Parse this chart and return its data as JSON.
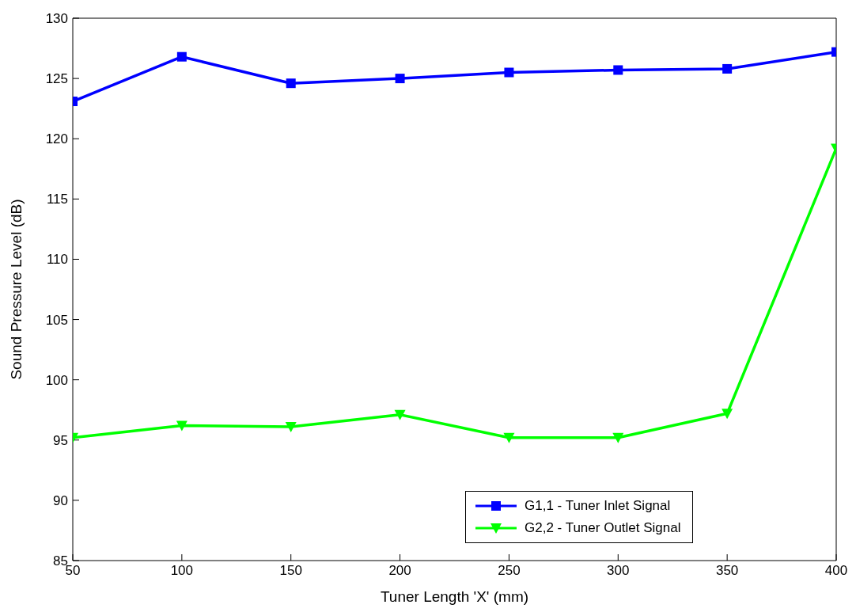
{
  "chart_data": {
    "type": "line",
    "xlabel": "Tuner Length 'X' (mm)",
    "ylabel": "Sound Pressure Level (dB)",
    "x": [
      50,
      100,
      150,
      200,
      250,
      300,
      350,
      400
    ],
    "series": [
      {
        "name": "G1,1 - Tuner Inlet Signal",
        "color": "#0000ff",
        "marker": "square",
        "values": [
          123.1,
          126.8,
          124.6,
          125.0,
          125.5,
          125.7,
          125.8,
          127.2
        ]
      },
      {
        "name": "G2,2 - Tuner Outlet Signal",
        "color": "#00ff00",
        "marker": "triangle",
        "values": [
          95.2,
          96.2,
          96.1,
          97.1,
          95.2,
          95.2,
          97.2,
          119.2
        ]
      }
    ],
    "xlim": [
      50,
      400
    ],
    "xticks": [
      50,
      100,
      150,
      200,
      250,
      300,
      350,
      400
    ],
    "ylim": [
      85,
      130
    ],
    "yticks": [
      85,
      90,
      95,
      100,
      105,
      110,
      115,
      120,
      125,
      130
    ],
    "grid": false,
    "legend": "bottom right",
    "line_style": "solid"
  }
}
